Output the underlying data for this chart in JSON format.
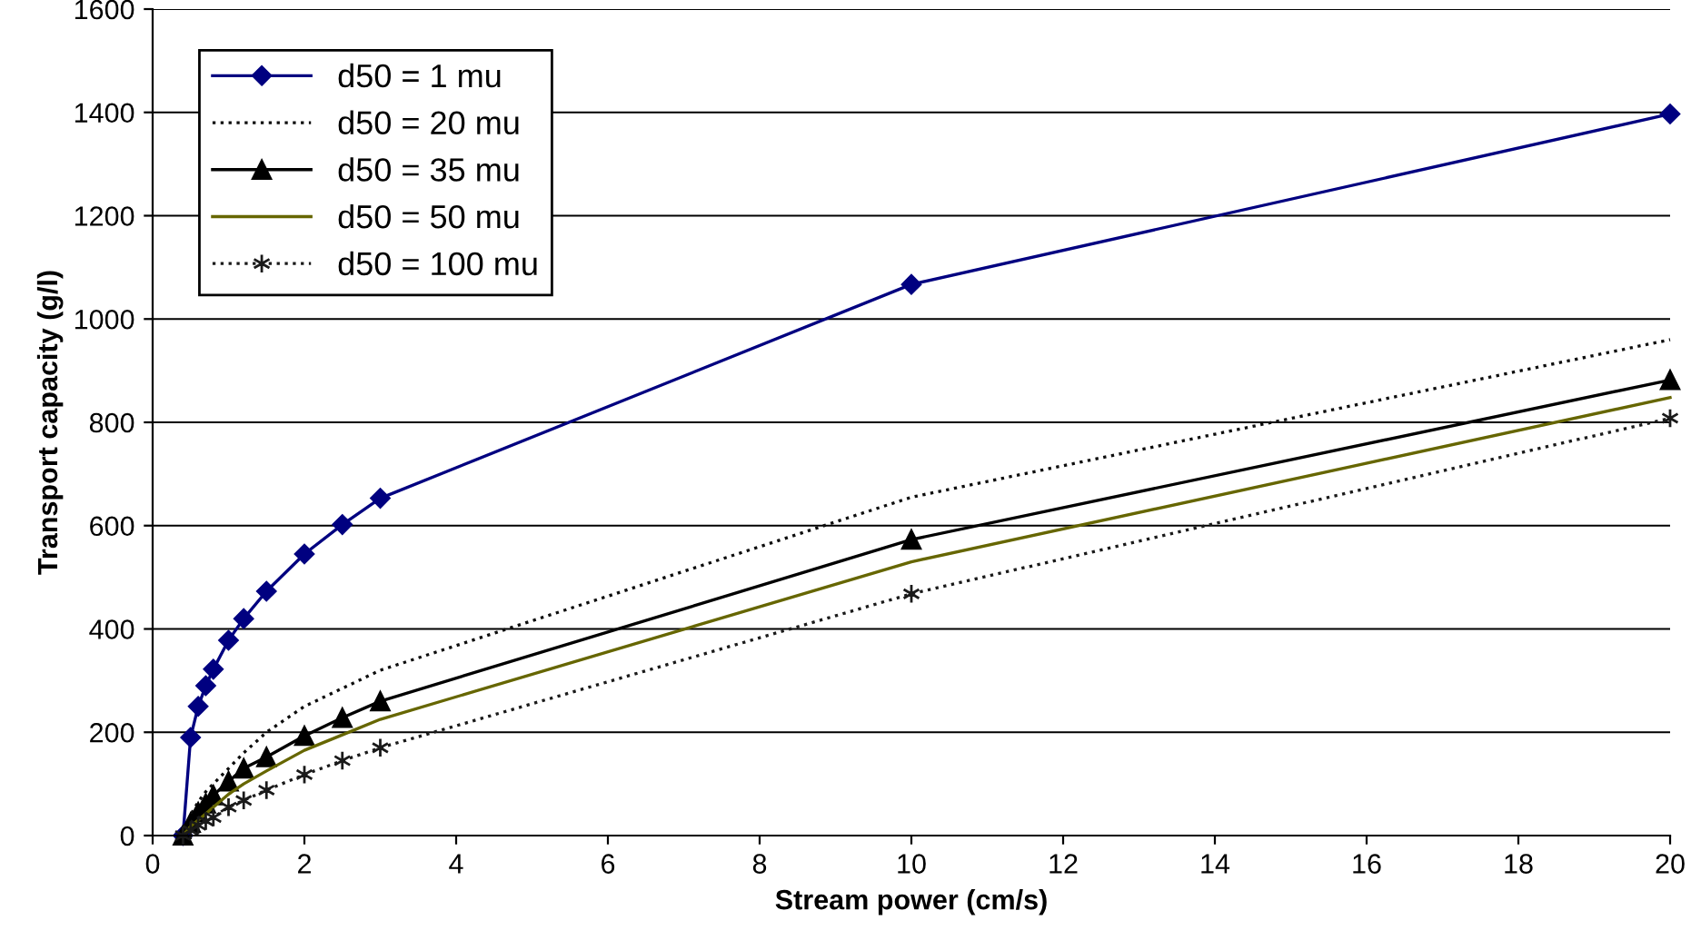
{
  "chart_data": {
    "type": "line",
    "xlabel": "Stream power (cm/s)",
    "ylabel": "Transport capacity (g/l)",
    "x": [
      0.4,
      0.5,
      0.6,
      0.7,
      0.8,
      1.0,
      1.2,
      1.5,
      2,
      2.5,
      3,
      10,
      20
    ],
    "series": [
      {
        "name": "d50 = 1 mu",
        "color": "#000080",
        "marker": "diamond",
        "line_style": "solid",
        "values": [
          0,
          190,
          250,
          290,
          322,
          378,
          420,
          473,
          545,
          602,
          653,
          1067,
          1397
        ]
      },
      {
        "name": "d50 = 20 mu",
        "color": "#0d0d0d",
        "marker": "none",
        "line_style": "dotted",
        "values": [
          0,
          40,
          65,
          85,
          100,
          130,
          160,
          200,
          250,
          285,
          320,
          655,
          960
        ]
      },
      {
        "name": "d50 = 35 mu",
        "color": "#000000",
        "marker": "triangle",
        "line_style": "solid",
        "values": [
          0,
          25,
          45,
          62,
          78,
          105,
          130,
          152,
          193,
          228,
          260,
          573,
          882
        ]
      },
      {
        "name": "d50 = 50 mu",
        "color": "#666600",
        "marker": "none",
        "line_style": "solid",
        "values": [
          0,
          18,
          30,
          42,
          55,
          80,
          100,
          125,
          165,
          195,
          225,
          530,
          848
        ]
      },
      {
        "name": "d50 = 100 mu",
        "color": "#1a1a1a",
        "marker": "cross",
        "line_style": "dotted",
        "values": [
          0,
          10,
          20,
          28,
          35,
          55,
          68,
          88,
          118,
          145,
          170,
          468,
          808
        ]
      }
    ],
    "xlim": [
      0,
      20
    ],
    "xticks": [
      0,
      2,
      4,
      6,
      8,
      10,
      12,
      14,
      16,
      18,
      20
    ],
    "ylim": [
      0,
      1600
    ],
    "yticks": [
      0,
      200,
      400,
      600,
      800,
      1000,
      1200,
      1400,
      1600
    ],
    "grid": "y",
    "legend": "top left"
  }
}
